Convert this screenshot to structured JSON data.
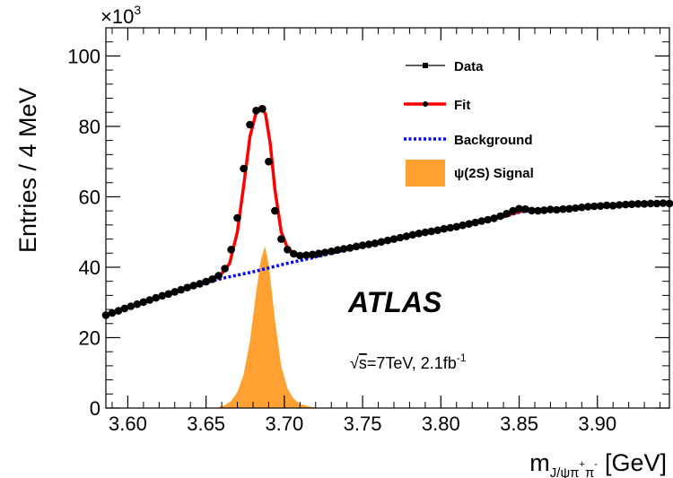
{
  "chart_data": {
    "type": "line",
    "title": "",
    "xlabel": {
      "main": "m",
      "sub": "J/ψπ",
      "sup1": "+",
      "sub2": "π",
      "sup2": "-",
      "unit": "[GeV]"
    },
    "ylabel": "Entries / 4 MeV",
    "y_multiplier": {
      "base": "×10",
      "exp": "3"
    },
    "xlim": [
      3.586,
      3.946
    ],
    "ylim": [
      0,
      108
    ],
    "x_ticks": [
      3.6,
      3.65,
      3.7,
      3.75,
      3.8,
      3.85,
      3.9
    ],
    "x_tick_labels": [
      "3.60",
      "3.65",
      "3.70",
      "3.75",
      "3.80",
      "3.85",
      "3.90"
    ],
    "y_ticks": [
      0,
      20,
      40,
      60,
      80,
      100
    ],
    "y_tick_labels": [
      "0",
      "20",
      "40",
      "60",
      "80",
      "100"
    ],
    "legend_position": "top-right",
    "legend": [
      {
        "key": "data",
        "label": "Data",
        "color": "#000000"
      },
      {
        "key": "fit",
        "label": "Fit",
        "color": "#ff0000"
      },
      {
        "key": "background",
        "label": "Background",
        "color": "#0000ff"
      },
      {
        "key": "signal",
        "label": "ψ(2S) Signal",
        "color": "#ffa033"
      }
    ],
    "series": [
      {
        "key": "data",
        "name": "Data",
        "color": "#000000",
        "x": [
          3.586,
          3.59,
          3.594,
          3.598,
          3.602,
          3.606,
          3.61,
          3.614,
          3.618,
          3.622,
          3.626,
          3.63,
          3.634,
          3.638,
          3.642,
          3.646,
          3.65,
          3.654,
          3.658,
          3.662,
          3.666,
          3.67,
          3.674,
          3.678,
          3.682,
          3.686,
          3.69,
          3.694,
          3.698,
          3.702,
          3.706,
          3.71,
          3.714,
          3.718,
          3.722,
          3.726,
          3.73,
          3.734,
          3.738,
          3.742,
          3.746,
          3.75,
          3.754,
          3.758,
          3.762,
          3.766,
          3.77,
          3.774,
          3.778,
          3.782,
          3.786,
          3.79,
          3.794,
          3.798,
          3.802,
          3.806,
          3.81,
          3.814,
          3.818,
          3.822,
          3.826,
          3.83,
          3.834,
          3.838,
          3.842,
          3.846,
          3.85,
          3.854,
          3.858,
          3.862,
          3.866,
          3.87,
          3.874,
          3.878,
          3.882,
          3.886,
          3.89,
          3.894,
          3.898,
          3.902,
          3.906,
          3.91,
          3.914,
          3.918,
          3.922,
          3.926,
          3.93,
          3.934,
          3.938,
          3.942,
          3.946
        ],
        "values": [
          26.4,
          27.0,
          27.6,
          28.3,
          28.9,
          29.5,
          30.1,
          30.7,
          31.3,
          31.9,
          32.4,
          33.0,
          33.6,
          34.2,
          34.8,
          35.3,
          35.9,
          36.6,
          37.6,
          39.6,
          45.0,
          54.0,
          68.0,
          80.5,
          84.5,
          85.0,
          70.0,
          56.0,
          48.0,
          45.0,
          43.8,
          43.3,
          43.4,
          43.6,
          43.9,
          44.2,
          44.5,
          44.9,
          45.2,
          45.5,
          45.9,
          46.2,
          46.5,
          46.8,
          47.2,
          47.6,
          48.0,
          48.4,
          48.8,
          49.2,
          49.6,
          49.9,
          50.2,
          50.5,
          50.9,
          51.2,
          51.5,
          51.9,
          52.3,
          52.7,
          53.1,
          53.5,
          53.9,
          54.5,
          55.2,
          56.0,
          56.6,
          56.5,
          56.1,
          56.0,
          56.2,
          56.4,
          56.3,
          56.5,
          56.6,
          56.8,
          57.0,
          57.2,
          57.3,
          57.4,
          57.6,
          57.5,
          57.7,
          57.8,
          57.9,
          58.0,
          58.0,
          58.1,
          58.1,
          58.2,
          58.1
        ]
      },
      {
        "key": "fit",
        "name": "Fit",
        "color": "#ff0000",
        "x": [
          3.586,
          3.6,
          3.62,
          3.64,
          3.65,
          3.66,
          3.665,
          3.67,
          3.674,
          3.678,
          3.682,
          3.685,
          3.688,
          3.691,
          3.694,
          3.698,
          3.702,
          3.706,
          3.71,
          3.714,
          3.72,
          3.74,
          3.76,
          3.78,
          3.8,
          3.82,
          3.84,
          3.85,
          3.86,
          3.87,
          3.88,
          3.9,
          3.92,
          3.946
        ],
        "values": [
          26.4,
          28.5,
          31.5,
          34.5,
          36.0,
          38.2,
          41.0,
          50.0,
          63.0,
          77.0,
          84.0,
          85.5,
          83.5,
          75.0,
          62.0,
          50.0,
          45.5,
          44.0,
          43.5,
          43.4,
          43.8,
          45.4,
          47.2,
          48.8,
          50.8,
          52.6,
          54.4,
          55.8,
          56.4,
          56.4,
          56.6,
          57.2,
          57.7,
          58.2
        ]
      },
      {
        "key": "background",
        "name": "Background",
        "color": "#0000ff",
        "x": [
          3.586,
          3.6,
          3.62,
          3.64,
          3.66,
          3.68,
          3.7,
          3.72,
          3.74,
          3.76,
          3.78,
          3.8,
          3.82,
          3.84,
          3.85,
          3.86,
          3.87,
          3.88,
          3.9,
          3.92,
          3.946
        ],
        "values": [
          26.4,
          28.5,
          31.5,
          34.4,
          36.8,
          38.7,
          40.9,
          42.9,
          45.0,
          46.9,
          48.7,
          50.6,
          52.5,
          54.3,
          55.6,
          56.3,
          56.3,
          56.5,
          57.1,
          57.7,
          58.2
        ]
      },
      {
        "key": "signal",
        "name": "ψ(2S) Signal",
        "color": "#ffa033",
        "x": [
          3.656,
          3.662,
          3.666,
          3.67,
          3.674,
          3.678,
          3.682,
          3.685,
          3.6875,
          3.69,
          3.694,
          3.698,
          3.702,
          3.706,
          3.71,
          3.716,
          3.722
        ],
        "values": [
          0,
          0.8,
          2.0,
          4.5,
          9.5,
          19.0,
          33.0,
          42.0,
          46.0,
          41.0,
          25.0,
          12.0,
          5.5,
          2.6,
          1.2,
          0.4,
          0
        ]
      }
    ],
    "annotations": [
      {
        "key": "experiment",
        "text": "ATLAS"
      },
      {
        "key": "energy",
        "sqrt_symbol": "√",
        "s": "s",
        "text": "=7TeV, 2.1fb",
        "sup": "-1"
      }
    ]
  }
}
